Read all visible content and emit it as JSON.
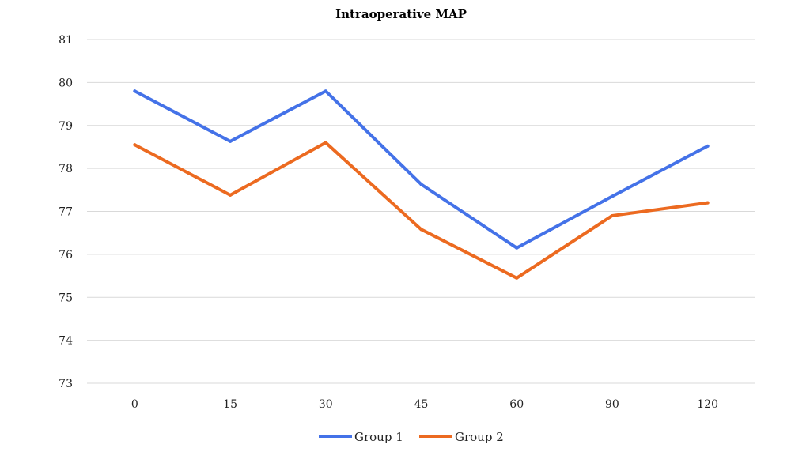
{
  "chart_data": {
    "type": "line",
    "title": "Intraoperative MAP",
    "xlabel": "",
    "ylabel": "",
    "categories": [
      "0",
      "15",
      "30",
      "45",
      "60",
      "90",
      "120"
    ],
    "ylim": [
      73,
      81
    ],
    "yticks": [
      "73",
      "74",
      "75",
      "76",
      "77",
      "78",
      "79",
      "80",
      "81"
    ],
    "grid": true,
    "legend_position": "bottom",
    "series": [
      {
        "name": "Group 1",
        "color": "#4472e8",
        "values": [
          79.8,
          78.63,
          79.8,
          77.63,
          76.15,
          77.35,
          78.52
        ]
      },
      {
        "name": "Group 2",
        "color": "#ec6a20",
        "values": [
          78.55,
          77.38,
          78.6,
          76.58,
          75.45,
          76.9,
          77.2
        ]
      }
    ]
  }
}
